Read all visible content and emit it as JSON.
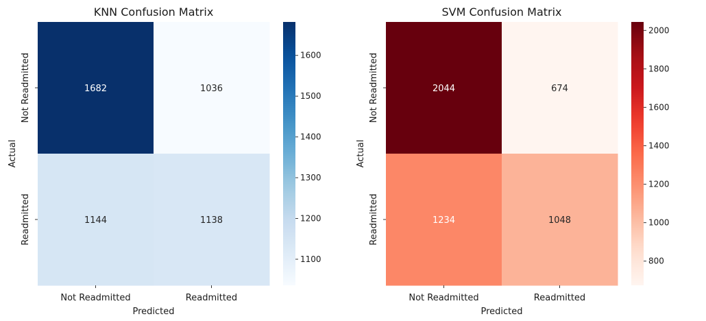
{
  "chart_data": [
    {
      "type": "heatmap",
      "title": "KNN Confusion Matrix",
      "xlabel": "Predicted",
      "ylabel": "Actual",
      "x_categories": [
        "Not Readmitted",
        "Readmitted"
      ],
      "y_categories": [
        "Not Readmitted",
        "Readmitted"
      ],
      "values": [
        [
          1682,
          1036
        ],
        [
          1144,
          1138
        ]
      ],
      "colormap": "Blues",
      "color_low": "#f7fbff",
      "color_high": "#08306b",
      "colorbar_ticks": [
        1100,
        1200,
        1300,
        1400,
        1500,
        1600
      ]
    },
    {
      "type": "heatmap",
      "title": "SVM Confusion Matrix",
      "xlabel": "Predicted",
      "ylabel": "Actual",
      "x_categories": [
        "Not Readmitted",
        "Readmitted"
      ],
      "y_categories": [
        "Not Readmitted",
        "Readmitted"
      ],
      "values": [
        [
          2044,
          674
        ],
        [
          1234,
          1048
        ]
      ],
      "colormap": "Reds",
      "color_low": "#fff5f0",
      "color_high": "#67000d",
      "colorbar_ticks": [
        800,
        1000,
        1200,
        1400,
        1600,
        1800,
        2000
      ]
    }
  ]
}
